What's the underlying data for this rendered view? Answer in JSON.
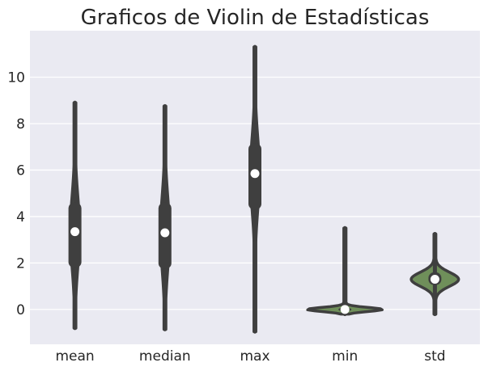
{
  "chart_data": {
    "type": "violin",
    "title": "Graficos de Violin de Estadísticas",
    "xlabel": "",
    "ylabel": "",
    "categories": [
      "mean",
      "median",
      "max",
      "min",
      "std"
    ],
    "ylim": [
      -1.5,
      12.0
    ],
    "yticks": [
      0,
      2,
      4,
      6,
      8,
      10
    ],
    "grid": true,
    "background": "#EAEAF2",
    "violin_fill": "#6F8F5A",
    "box_color": "#3F3F3F",
    "median_marker_color": "#FFFFFF",
    "series": [
      {
        "category": "mean",
        "min": -0.8,
        "q1": 1.8,
        "median": 3.35,
        "q3": 4.6,
        "max": 8.9
      },
      {
        "category": "median",
        "min": -0.85,
        "q1": 1.75,
        "median": 3.3,
        "q3": 4.6,
        "max": 8.75
      },
      {
        "category": "max",
        "min": -0.95,
        "q1": 4.3,
        "median": 5.85,
        "q3": 7.15,
        "max": 11.3
      },
      {
        "category": "min",
        "min": -0.2,
        "q1": -0.08,
        "median": 0.0,
        "q3": 0.08,
        "max": 3.5
      },
      {
        "category": "std",
        "min": -0.2,
        "q1": 1.05,
        "median": 1.3,
        "q3": 1.6,
        "max": 3.25
      }
    ]
  }
}
